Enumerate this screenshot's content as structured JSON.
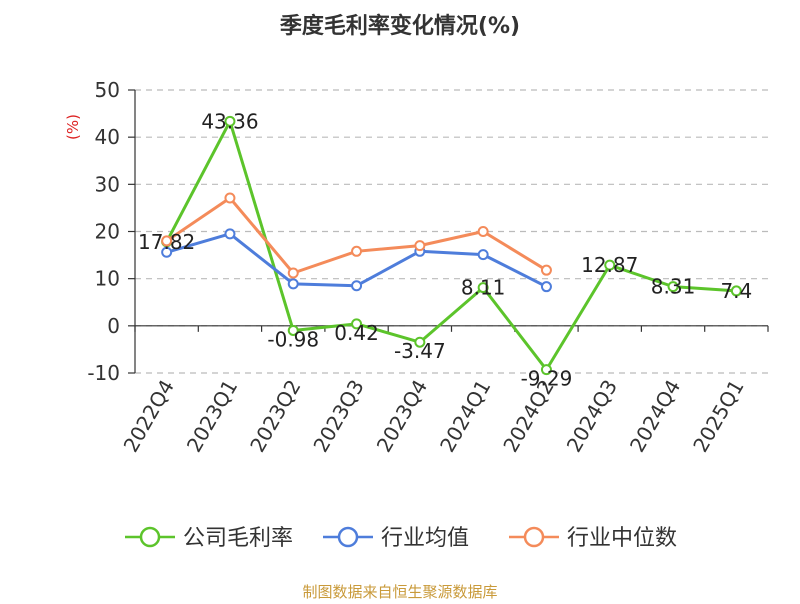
{
  "chart_data": {
    "type": "line",
    "title": "季度毛利率变化情况(%)",
    "ylabel": "(%)",
    "xlabel": "",
    "categories": [
      "2022Q4",
      "2023Q1",
      "2023Q2",
      "2023Q3",
      "2023Q4",
      "2024Q1",
      "2024Q2",
      "2024Q3",
      "2024Q4",
      "2025Q1"
    ],
    "ylim": [
      -10,
      50
    ],
    "yticks": [
      -10,
      0,
      10,
      20,
      30,
      40,
      50
    ],
    "grid": true,
    "legend_position": "bottom",
    "series": [
      {
        "name": "公司毛利率",
        "color": "#5cc42b",
        "values": [
          17.82,
          43.36,
          -0.98,
          0.42,
          -3.47,
          8.11,
          -9.29,
          12.87,
          8.31,
          7.4
        ],
        "labels": [
          "17.82",
          "43.36",
          "-0.98",
          "0.42",
          "-3.47",
          "8.11",
          "-9.29",
          "12.87",
          "8.31",
          "7.4"
        ]
      },
      {
        "name": "行业均值",
        "color": "#4e7ddb",
        "values": [
          15.6,
          19.5,
          8.9,
          8.5,
          15.8,
          15.1,
          8.3,
          null,
          null,
          null
        ]
      },
      {
        "name": "行业中位数",
        "color": "#f48b5a",
        "values": [
          18.0,
          27.1,
          11.2,
          15.8,
          17.0,
          20.0,
          11.8,
          null,
          null,
          null
        ]
      }
    ]
  },
  "source_note": "制图数据来自恒生聚源数据库",
  "colors": {
    "title": "#333333",
    "ylabel": "#dd2222",
    "axis": "#333333",
    "grid": "#bbbbbb",
    "source": "#c99a3a"
  }
}
